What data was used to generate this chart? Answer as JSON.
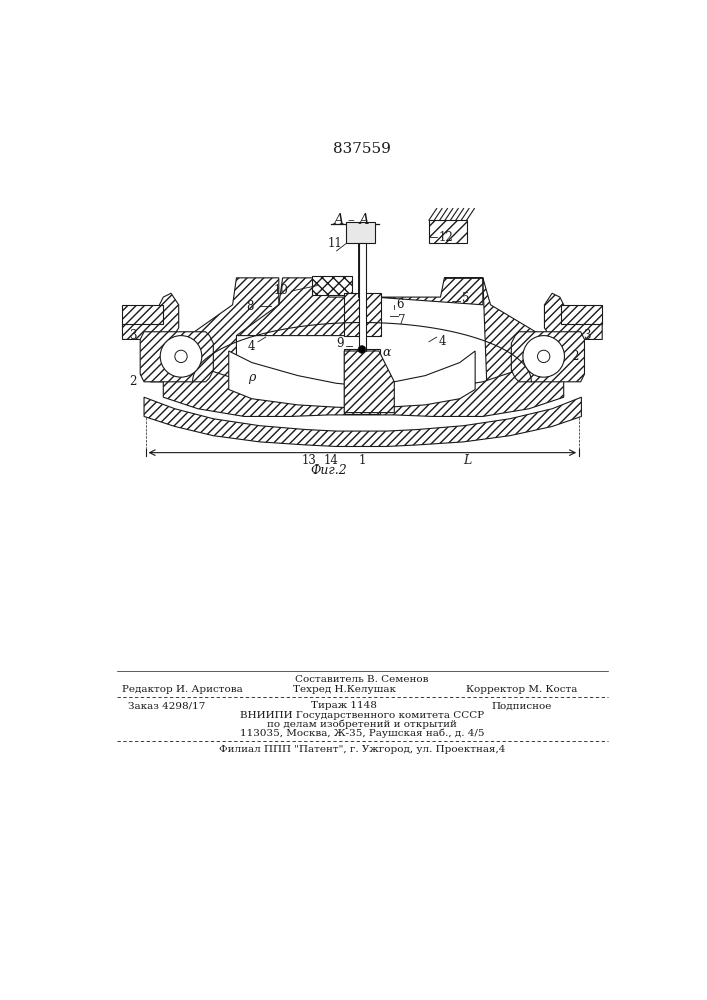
{
  "patent_number": "837559",
  "fig_label": "Фиг.2",
  "section_label": "А – А",
  "bg_color": "#ffffff",
  "line_color": "#1a1a1a",
  "footer": {
    "sestavitel": "Составитель В. Семенов",
    "redaktor": "Редактор И. Аристова",
    "tehred": "Техред Н.Келушак",
    "korrektor": "Корректор М. Коста",
    "zakaz": "Заказ 4298/17",
    "tirazh": "Тираж 1148",
    "podpisnoe": "Подписное",
    "vniipи": "ВНИИПИ Государственного комитета СССР",
    "podel": "по делам изобретений и открытий",
    "addr": "113035, Москва, Ж-35, Раушская наб., д. 4/5",
    "filial": "Филиал ППП \"Патент\", г. Ужгород, ул. Проектная,4"
  }
}
